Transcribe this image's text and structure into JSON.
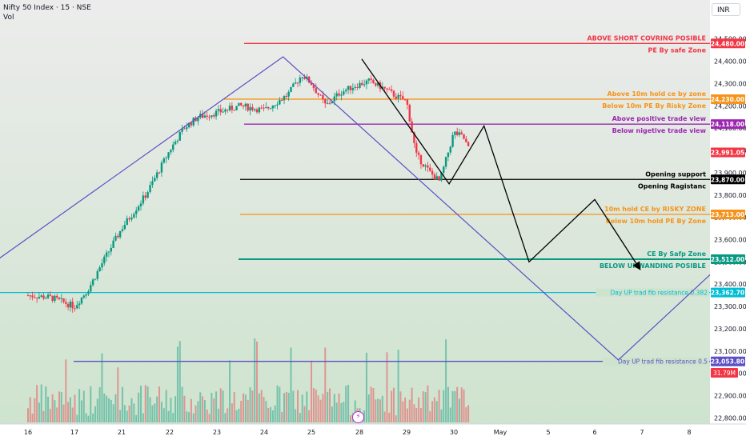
{
  "header": {
    "title": "Nifty 50 Index · 15 · NSE",
    "volume_label": "Vol",
    "currency": "INR"
  },
  "colors": {
    "background_top": "#ececec",
    "background_bottom": "#cde3cd",
    "candle_up": "#089981",
    "candle_down": "#f23645",
    "red": "#f23645",
    "orange": "#f7931a",
    "purple": "#9c27b0",
    "black": "#000000",
    "teal": "#089981",
    "cyan": "#00bcd4",
    "indigo": "#5b4fc4",
    "pattern": "#5b4fc4"
  },
  "price_axis": {
    "ticks": [
      "24,500.00",
      "24,400.00",
      "24,300.00",
      "24,200.00",
      "24,100.00",
      "24,000.00",
      "23,900.00",
      "23,800.00",
      "23,700.00",
      "23,600.00",
      "23,500.00",
      "23,400.00",
      "23,300.00",
      "23,200.00",
      "23,100.00",
      "23,000.00",
      "22,900.00",
      "22,800.00"
    ]
  },
  "time_axis": {
    "labels": [
      "16",
      "17",
      "21",
      "22",
      "23",
      "24",
      "25",
      "28",
      "29",
      "30",
      "May",
      "5",
      "6",
      "7",
      "8"
    ]
  },
  "chart_data": {
    "type": "line",
    "title": "Nifty 50 Index · 15 · NSE",
    "ylim": [
      22780,
      24560
    ],
    "levels": [
      {
        "price": 24480.0,
        "tag": "24,480.00",
        "color": "red",
        "labels": [
          {
            "text": "ABOVE SHORT COVRING POSIBLE",
            "side": "above"
          },
          {
            "text": "PE By safe Zone",
            "side": "below"
          }
        ]
      },
      {
        "price": 24230.0,
        "tag": "24,230.00",
        "color": "orange",
        "labels": [
          {
            "text": "Above 10m hold ce by zone",
            "side": "above"
          },
          {
            "text": "Below 10m PE By Risky Zone",
            "side": "below"
          }
        ]
      },
      {
        "price": 24118.0,
        "tag": "24,118.00",
        "color": "purple",
        "labels": [
          {
            "text": "Above positive trade view",
            "side": "above"
          },
          {
            "text": "Below nigetive trade view",
            "side": "below"
          }
        ]
      },
      {
        "price": 23870.0,
        "tag": "23,870.00",
        "color": "black",
        "labels": [
          {
            "text": "Opening support",
            "side": "above"
          },
          {
            "text": "Opening Ragistanc",
            "side": "below"
          }
        ]
      },
      {
        "price": 23713.0,
        "tag": "23,713.00",
        "color": "orange",
        "labels": [
          {
            "text": "10m hold CE by RISKY ZONE",
            "side": "above"
          },
          {
            "text": "Below 10m hold PE By Zone",
            "side": "below"
          }
        ]
      },
      {
        "price": 23512.0,
        "tag": "23,512.00",
        "color": "teal",
        "labels": [
          {
            "text": "CE By Safp Zone",
            "side": "above"
          },
          {
            "text": "BELOW UNWANDING POSIBLE",
            "side": "below"
          }
        ]
      },
      {
        "price": 23362.7,
        "tag": "23,362.70",
        "color": "cyan",
        "labels": [
          {
            "text": "Day UP trad fib resistance 0.382",
            "side": "inline"
          }
        ]
      },
      {
        "price": 23053.8,
        "tag": "23,053.80",
        "color": "indigo",
        "labels": [
          {
            "text": "Day UP trad fib resistance 0.5",
            "side": "inline"
          }
        ]
      }
    ],
    "last_price": {
      "price": 23991.05,
      "tag": "23,991.05"
    },
    "volume_tag": "31.79M",
    "series": [
      {
        "values": [
          [
            16,
            23350
          ],
          [
            16.5,
            23340
          ],
          [
            17,
            23300
          ],
          [
            17.3,
            23380
          ],
          [
            17.6,
            23500
          ],
          [
            18,
            23650
          ],
          [
            18.5,
            23800
          ],
          [
            19,
            24000
          ],
          [
            19.3,
            24100
          ],
          [
            19.6,
            24150
          ],
          [
            20,
            24170
          ],
          [
            20.5,
            24200
          ],
          [
            21,
            24180
          ],
          [
            21.5,
            24250
          ],
          [
            21.8,
            24340
          ],
          [
            22,
            24300
          ],
          [
            22.3,
            24200
          ],
          [
            22.6,
            24260
          ],
          [
            22.9,
            24290
          ],
          [
            23.2,
            24310
          ],
          [
            23.5,
            24280
          ],
          [
            23.8,
            24240
          ],
          [
            24,
            24220
          ],
          [
            24.2,
            23980
          ],
          [
            24.5,
            23900
          ],
          [
            24.7,
            23860
          ],
          [
            25,
            24080
          ],
          [
            25.2,
            24060
          ],
          [
            25.35,
            23991
          ]
        ]
      }
    ],
    "projection_black": [
      [
        23.05,
        24410
      ],
      [
        24.9,
        23850
      ],
      [
        25.65,
        24110
      ],
      [
        26.6,
        23500
      ],
      [
        28,
        23780
      ],
      [
        28.95,
        23470
      ]
    ],
    "projection_purple": [
      [
        12.3,
        23060
      ],
      [
        21.4,
        24420
      ],
      [
        28.5,
        23060
      ],
      [
        31.8,
        23710
      ]
    ]
  }
}
